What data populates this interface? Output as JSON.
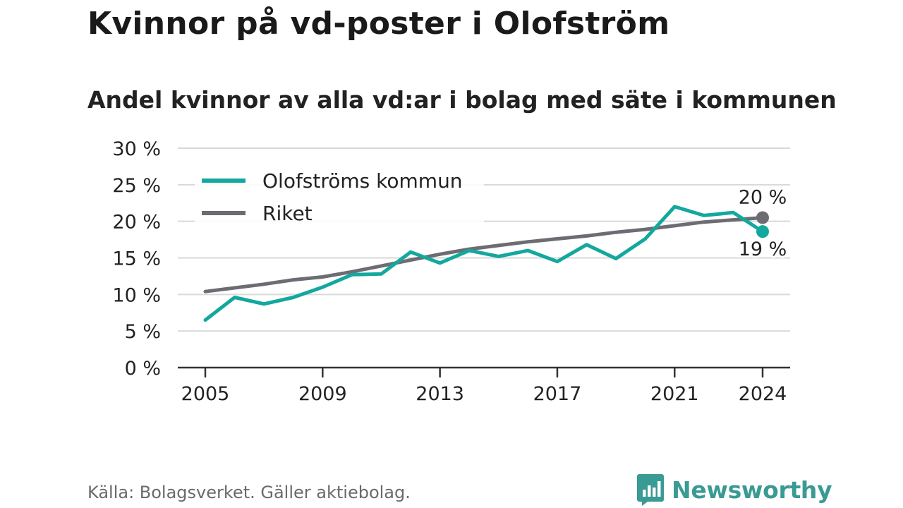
{
  "title": "Kvinnor på vd-poster i Olofström",
  "subtitle": "Andel kvinnor av alla vd:ar i bolag med säte i kommunen",
  "source": "Källa: Bolagsverket. Gäller aktiebolag.",
  "brand": {
    "name": "Newsworthy",
    "icon": "bar-chart-speech-icon"
  },
  "colors": {
    "kommun": "#13a89e",
    "riket": "#6e6c73",
    "grid": "#d9d9d9",
    "axis": "#333333",
    "text": "#222222"
  },
  "chart_data": {
    "type": "line",
    "title": "Kvinnor på vd-poster i Olofström",
    "subtitle": "Andel kvinnor av alla vd:ar i bolag med säte i kommunen",
    "xlabel": "",
    "ylabel": "",
    "ylim": [
      0,
      30
    ],
    "xlim": [
      2005,
      2024
    ],
    "yticks": [
      0,
      5,
      10,
      15,
      20,
      25,
      30
    ],
    "ytick_labels": [
      "0 %",
      "5 %",
      "10 %",
      "15 %",
      "20 %",
      "25 %",
      "30 %"
    ],
    "xticks": [
      2005,
      2009,
      2013,
      2017,
      2021,
      2024
    ],
    "xtick_labels": [
      "2005",
      "2009",
      "2013",
      "2017",
      "2021",
      "2024"
    ],
    "grid": true,
    "legend_position": "top-left",
    "x": [
      2005,
      2006,
      2007,
      2008,
      2009,
      2010,
      2011,
      2012,
      2013,
      2014,
      2015,
      2016,
      2017,
      2018,
      2019,
      2020,
      2021,
      2022,
      2023,
      2024
    ],
    "series": [
      {
        "name": "Olofströms kommun",
        "color": "#13a89e",
        "values": [
          6.5,
          9.6,
          8.7,
          9.6,
          11.0,
          12.7,
          12.8,
          15.8,
          14.3,
          16.0,
          15.2,
          16.0,
          14.5,
          16.8,
          14.9,
          17.6,
          22.0,
          20.8,
          21.2,
          18.6
        ],
        "end_label": "19 %"
      },
      {
        "name": "Riket",
        "color": "#6e6c73",
        "values": [
          10.4,
          10.9,
          11.4,
          12.0,
          12.4,
          13.1,
          13.9,
          14.7,
          15.5,
          16.2,
          16.7,
          17.2,
          17.6,
          18.0,
          18.5,
          18.9,
          19.4,
          19.9,
          20.2,
          20.5
        ],
        "end_label": "20 %"
      }
    ]
  }
}
